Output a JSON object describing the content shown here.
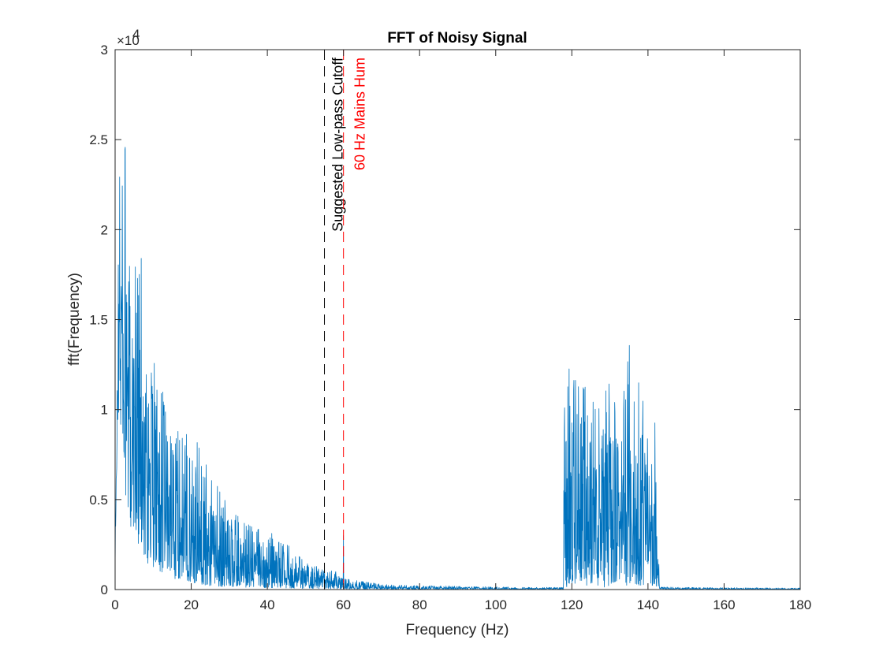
{
  "chart_data": {
    "type": "line",
    "title": "FFT of Noisy Signal",
    "xlabel": "Frequency (Hz)",
    "ylabel": "fft(Frequency)",
    "xlim": [
      0,
      180
    ],
    "ylim": [
      0,
      30000
    ],
    "y_scale_exponent_label": "×10",
    "y_scale_exponent": "4",
    "x_ticks": [
      0,
      20,
      40,
      60,
      80,
      100,
      120,
      140,
      160,
      180
    ],
    "x_tick_labels": [
      "0",
      "20",
      "40",
      "60",
      "80",
      "100",
      "120",
      "140",
      "160",
      "180"
    ],
    "y_ticks": [
      0,
      5000,
      10000,
      15000,
      20000,
      25000,
      30000
    ],
    "y_tick_labels": [
      "0",
      "0.5",
      "1",
      "1.5",
      "2",
      "2.5",
      "3"
    ],
    "grid": false,
    "box": true,
    "series": [
      {
        "color": "#0072BD",
        "approximate_envelope": {
          "x": [
            0,
            0.6,
            1.2,
            1.8,
            2.4,
            3.0,
            4.0,
            5.0,
            6.0,
            7.0,
            8.0,
            10,
            12,
            15,
            18,
            20,
            25,
            30,
            35,
            40,
            45,
            50,
            55,
            59,
            59.8,
            60,
            60.2,
            61,
            65,
            70,
            80,
            100,
            117.8,
            118,
            120,
            122,
            124,
            126,
            128,
            130,
            132,
            134,
            135,
            136,
            138,
            140,
            141.5,
            142,
            143,
            150,
            160,
            170,
            180
          ],
          "peak": [
            2500,
            15000,
            25500,
            25500,
            27400,
            21000,
            18000,
            22300,
            17500,
            19400,
            14000,
            13000,
            11500,
            10500,
            8500,
            9000,
            6500,
            4500,
            3800,
            3300,
            2600,
            1600,
            1100,
            1000,
            600,
            3000,
            700,
            600,
            450,
            300,
            220,
            150,
            120,
            13800,
            12000,
            11300,
            11400,
            10200,
            12700,
            11300,
            12300,
            12000,
            14000,
            12600,
            11500,
            9500,
            9900,
            9800,
            150,
            120,
            110,
            100,
            90
          ],
          "floor": [
            0,
            9000,
            10000,
            7500,
            7000,
            4000,
            3500,
            3500,
            2500,
            2500,
            1500,
            1200,
            1000,
            600,
            600,
            400,
            200,
            150,
            120,
            100,
            80,
            60,
            50,
            40,
            30,
            30,
            30,
            20,
            20,
            20,
            10,
            10,
            10,
            100,
            200,
            500,
            200,
            300,
            100,
            200,
            500,
            100,
            300,
            400,
            200,
            300,
            200,
            200,
            20,
            10,
            10,
            10,
            10
          ]
        }
      }
    ],
    "reference_lines": [
      {
        "x": 55,
        "color": "#000000",
        "style": "dashed",
        "label": "Suggested Low-pass Cutoff"
      },
      {
        "x": 60,
        "color": "#FF0000",
        "style": "dashed",
        "label": "60 Hz Mains Hum"
      }
    ]
  }
}
